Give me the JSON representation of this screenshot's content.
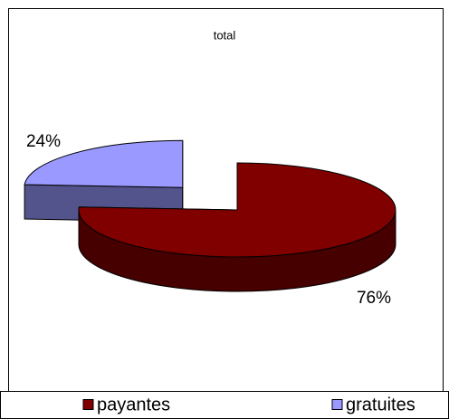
{
  "chart_data": {
    "type": "pie",
    "title": "total",
    "categories": [
      "payantes",
      "gratuites"
    ],
    "values": [
      76,
      24
    ],
    "value_labels": [
      "76%",
      "24%"
    ],
    "colors": [
      "#800000",
      "#9999ff"
    ],
    "legend": "bottom"
  }
}
